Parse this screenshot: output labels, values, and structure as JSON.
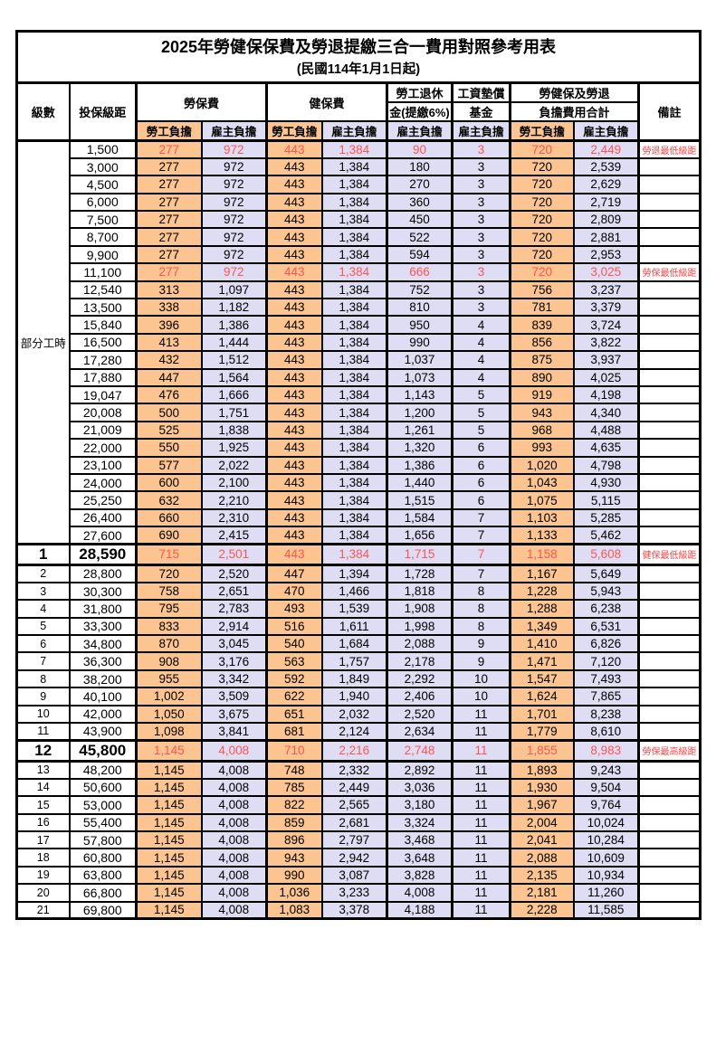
{
  "title": "2025年勞健保保費及勞退提繳三合一費用對照參考用表",
  "subtitle": "(民國114年1月1日起)",
  "colors": {
    "employee_fill": "#FBC490",
    "employer_fill": "#DFDDF3",
    "highlight_red": "#FF5454",
    "note_red": "#FF4343"
  },
  "table": {
    "headers": {
      "level": "級數",
      "bracket": "投保級距",
      "labor_ins": "勞保費",
      "health_ins": "健保費",
      "pension_line1": "勞工退休",
      "pension_line2": "金(提繳6%)",
      "wage_fund_line1": "工資墊償",
      "wage_fund_line2": "基金",
      "total_line1": "勞健保及勞退",
      "total_line2": "負擔費用合計",
      "remarks": "備註",
      "employee": "勞工負擔",
      "employer": "雇主負擔"
    },
    "part_time_label": "部分工時",
    "rows": [
      {
        "level": null,
        "part_span": 23,
        "bracket": "1,500",
        "cells": [
          "277",
          "972",
          "443",
          "1,384",
          "90",
          "3",
          "720",
          "2,449"
        ],
        "note": "勞退最低級距",
        "red": true,
        "big": false,
        "thick": false
      },
      {
        "level": null,
        "bracket": "3,000",
        "cells": [
          "277",
          "972",
          "443",
          "1,384",
          "180",
          "3",
          "720",
          "2,539"
        ],
        "note": "",
        "red": false,
        "big": false,
        "thick": false
      },
      {
        "level": null,
        "bracket": "4,500",
        "cells": [
          "277",
          "972",
          "443",
          "1,384",
          "270",
          "3",
          "720",
          "2,629"
        ],
        "note": "",
        "red": false,
        "big": false,
        "thick": false
      },
      {
        "level": null,
        "bracket": "6,000",
        "cells": [
          "277",
          "972",
          "443",
          "1,384",
          "360",
          "3",
          "720",
          "2,719"
        ],
        "note": "",
        "red": false,
        "big": false,
        "thick": false
      },
      {
        "level": null,
        "bracket": "7,500",
        "cells": [
          "277",
          "972",
          "443",
          "1,384",
          "450",
          "3",
          "720",
          "2,809"
        ],
        "note": "",
        "red": false,
        "big": false,
        "thick": false
      },
      {
        "level": null,
        "bracket": "8,700",
        "cells": [
          "277",
          "972",
          "443",
          "1,384",
          "522",
          "3",
          "720",
          "2,881"
        ],
        "note": "",
        "red": false,
        "big": false,
        "thick": false
      },
      {
        "level": null,
        "bracket": "9,900",
        "cells": [
          "277",
          "972",
          "443",
          "1,384",
          "594",
          "3",
          "720",
          "2,953"
        ],
        "note": "",
        "red": false,
        "big": false,
        "thick": false
      },
      {
        "level": null,
        "bracket": "11,100",
        "cells": [
          "277",
          "972",
          "443",
          "1,384",
          "666",
          "3",
          "720",
          "3,025"
        ],
        "note": "勞保最低級距",
        "red": true,
        "big": false,
        "thick": false
      },
      {
        "level": null,
        "bracket": "12,540",
        "cells": [
          "313",
          "1,097",
          "443",
          "1,384",
          "752",
          "3",
          "756",
          "3,237"
        ],
        "note": "",
        "red": false,
        "big": false,
        "thick": false
      },
      {
        "level": null,
        "bracket": "13,500",
        "cells": [
          "338",
          "1,182",
          "443",
          "1,384",
          "810",
          "3",
          "781",
          "3,379"
        ],
        "note": "",
        "red": false,
        "big": false,
        "thick": false
      },
      {
        "level": null,
        "bracket": "15,840",
        "cells": [
          "396",
          "1,386",
          "443",
          "1,384",
          "950",
          "4",
          "839",
          "3,724"
        ],
        "note": "",
        "red": false,
        "big": false,
        "thick": false
      },
      {
        "level": null,
        "bracket": "16,500",
        "cells": [
          "413",
          "1,444",
          "443",
          "1,384",
          "990",
          "4",
          "856",
          "3,822"
        ],
        "note": "",
        "red": false,
        "big": false,
        "thick": false
      },
      {
        "level": null,
        "bracket": "17,280",
        "cells": [
          "432",
          "1,512",
          "443",
          "1,384",
          "1,037",
          "4",
          "875",
          "3,937"
        ],
        "note": "",
        "red": false,
        "big": false,
        "thick": false
      },
      {
        "level": null,
        "bracket": "17,880",
        "cells": [
          "447",
          "1,564",
          "443",
          "1,384",
          "1,073",
          "4",
          "890",
          "4,025"
        ],
        "note": "",
        "red": false,
        "big": false,
        "thick": false
      },
      {
        "level": null,
        "bracket": "19,047",
        "cells": [
          "476",
          "1,666",
          "443",
          "1,384",
          "1,143",
          "5",
          "919",
          "4,198"
        ],
        "note": "",
        "red": false,
        "big": false,
        "thick": false
      },
      {
        "level": null,
        "bracket": "20,008",
        "cells": [
          "500",
          "1,751",
          "443",
          "1,384",
          "1,200",
          "5",
          "943",
          "4,340"
        ],
        "note": "",
        "red": false,
        "big": false,
        "thick": false
      },
      {
        "level": null,
        "bracket": "21,009",
        "cells": [
          "525",
          "1,838",
          "443",
          "1,384",
          "1,261",
          "5",
          "968",
          "4,488"
        ],
        "note": "",
        "red": false,
        "big": false,
        "thick": false
      },
      {
        "level": null,
        "bracket": "22,000",
        "cells": [
          "550",
          "1,925",
          "443",
          "1,384",
          "1,320",
          "6",
          "993",
          "4,635"
        ],
        "note": "",
        "red": false,
        "big": false,
        "thick": false
      },
      {
        "level": null,
        "bracket": "23,100",
        "cells": [
          "577",
          "2,022",
          "443",
          "1,384",
          "1,386",
          "6",
          "1,020",
          "4,798"
        ],
        "note": "",
        "red": false,
        "big": false,
        "thick": false
      },
      {
        "level": null,
        "bracket": "24,000",
        "cells": [
          "600",
          "2,100",
          "443",
          "1,384",
          "1,440",
          "6",
          "1,043",
          "4,930"
        ],
        "note": "",
        "red": false,
        "big": false,
        "thick": false
      },
      {
        "level": null,
        "bracket": "25,250",
        "cells": [
          "632",
          "2,210",
          "443",
          "1,384",
          "1,515",
          "6",
          "1,075",
          "5,115"
        ],
        "note": "",
        "red": false,
        "big": false,
        "thick": false
      },
      {
        "level": null,
        "bracket": "26,400",
        "cells": [
          "660",
          "2,310",
          "443",
          "1,384",
          "1,584",
          "7",
          "1,103",
          "5,285"
        ],
        "note": "",
        "red": false,
        "big": false,
        "thick": false
      },
      {
        "level": null,
        "bracket": "27,600",
        "cells": [
          "690",
          "2,415",
          "443",
          "1,384",
          "1,656",
          "7",
          "1,133",
          "5,462"
        ],
        "note": "",
        "red": false,
        "big": false,
        "thick": false
      },
      {
        "level": "1",
        "bracket": "28,590",
        "cells": [
          "715",
          "2,501",
          "443",
          "1,384",
          "1,715",
          "7",
          "1,158",
          "5,608"
        ],
        "note": "健保最低級距",
        "red": true,
        "big": true,
        "thick": true
      },
      {
        "level": "2",
        "bracket": "28,800",
        "cells": [
          "720",
          "2,520",
          "447",
          "1,394",
          "1,728",
          "7",
          "1,167",
          "5,649"
        ],
        "note": "",
        "red": false,
        "big": false,
        "thick": false
      },
      {
        "level": "3",
        "bracket": "30,300",
        "cells": [
          "758",
          "2,651",
          "470",
          "1,466",
          "1,818",
          "8",
          "1,228",
          "5,943"
        ],
        "note": "",
        "red": false,
        "big": false,
        "thick": false
      },
      {
        "level": "4",
        "bracket": "31,800",
        "cells": [
          "795",
          "2,783",
          "493",
          "1,539",
          "1,908",
          "8",
          "1,288",
          "6,238"
        ],
        "note": "",
        "red": false,
        "big": false,
        "thick": false
      },
      {
        "level": "5",
        "bracket": "33,300",
        "cells": [
          "833",
          "2,914",
          "516",
          "1,611",
          "1,998",
          "8",
          "1,349",
          "6,531"
        ],
        "note": "",
        "red": false,
        "big": false,
        "thick": false
      },
      {
        "level": "6",
        "bracket": "34,800",
        "cells": [
          "870",
          "3,045",
          "540",
          "1,684",
          "2,088",
          "9",
          "1,410",
          "6,826"
        ],
        "note": "",
        "red": false,
        "big": false,
        "thick": false
      },
      {
        "level": "7",
        "bracket": "36,300",
        "cells": [
          "908",
          "3,176",
          "563",
          "1,757",
          "2,178",
          "9",
          "1,471",
          "7,120"
        ],
        "note": "",
        "red": false,
        "big": false,
        "thick": false
      },
      {
        "level": "8",
        "bracket": "38,200",
        "cells": [
          "955",
          "3,342",
          "592",
          "1,849",
          "2,292",
          "10",
          "1,547",
          "7,493"
        ],
        "note": "",
        "red": false,
        "big": false,
        "thick": false
      },
      {
        "level": "9",
        "bracket": "40,100",
        "cells": [
          "1,002",
          "3,509",
          "622",
          "1,940",
          "2,406",
          "10",
          "1,624",
          "7,865"
        ],
        "note": "",
        "red": false,
        "big": false,
        "thick": false
      },
      {
        "level": "10",
        "bracket": "42,000",
        "cells": [
          "1,050",
          "3,675",
          "651",
          "2,032",
          "2,520",
          "11",
          "1,701",
          "8,238"
        ],
        "note": "",
        "red": false,
        "big": false,
        "thick": false
      },
      {
        "level": "11",
        "bracket": "43,900",
        "cells": [
          "1,098",
          "3,841",
          "681",
          "2,124",
          "2,634",
          "11",
          "1,779",
          "8,610"
        ],
        "note": "",
        "red": false,
        "big": false,
        "thick": false
      },
      {
        "level": "12",
        "bracket": "45,800",
        "cells": [
          "1,145",
          "4,008",
          "710",
          "2,216",
          "2,748",
          "11",
          "1,855",
          "8,983"
        ],
        "note": "勞保最高級距",
        "red": true,
        "big": true,
        "thick": true
      },
      {
        "level": "13",
        "bracket": "48,200",
        "cells": [
          "1,145",
          "4,008",
          "748",
          "2,332",
          "2,892",
          "11",
          "1,893",
          "9,243"
        ],
        "note": "",
        "red": false,
        "big": false,
        "thick": false
      },
      {
        "level": "14",
        "bracket": "50,600",
        "cells": [
          "1,145",
          "4,008",
          "785",
          "2,449",
          "3,036",
          "11",
          "1,930",
          "9,504"
        ],
        "note": "",
        "red": false,
        "big": false,
        "thick": false
      },
      {
        "level": "15",
        "bracket": "53,000",
        "cells": [
          "1,145",
          "4,008",
          "822",
          "2,565",
          "3,180",
          "11",
          "1,967",
          "9,764"
        ],
        "note": "",
        "red": false,
        "big": false,
        "thick": false
      },
      {
        "level": "16",
        "bracket": "55,400",
        "cells": [
          "1,145",
          "4,008",
          "859",
          "2,681",
          "3,324",
          "11",
          "2,004",
          "10,024"
        ],
        "note": "",
        "red": false,
        "big": false,
        "thick": false
      },
      {
        "level": "17",
        "bracket": "57,800",
        "cells": [
          "1,145",
          "4,008",
          "896",
          "2,797",
          "3,468",
          "11",
          "2,041",
          "10,284"
        ],
        "note": "",
        "red": false,
        "big": false,
        "thick": false
      },
      {
        "level": "18",
        "bracket": "60,800",
        "cells": [
          "1,145",
          "4,008",
          "943",
          "2,942",
          "3,648",
          "11",
          "2,088",
          "10,609"
        ],
        "note": "",
        "red": false,
        "big": false,
        "thick": false
      },
      {
        "level": "19",
        "bracket": "63,800",
        "cells": [
          "1,145",
          "4,008",
          "990",
          "3,087",
          "3,828",
          "11",
          "2,135",
          "10,934"
        ],
        "note": "",
        "red": false,
        "big": false,
        "thick": false
      },
      {
        "level": "20",
        "bracket": "66,800",
        "cells": [
          "1,145",
          "4,008",
          "1,036",
          "3,233",
          "4,008",
          "11",
          "2,181",
          "11,260"
        ],
        "note": "",
        "red": false,
        "big": false,
        "thick": false
      },
      {
        "level": "21",
        "bracket": "69,800",
        "cells": [
          "1,145",
          "4,008",
          "1,083",
          "3,378",
          "4,188",
          "11",
          "2,228",
          "11,585"
        ],
        "note": "",
        "red": false,
        "big": false,
        "thick": false
      }
    ]
  }
}
